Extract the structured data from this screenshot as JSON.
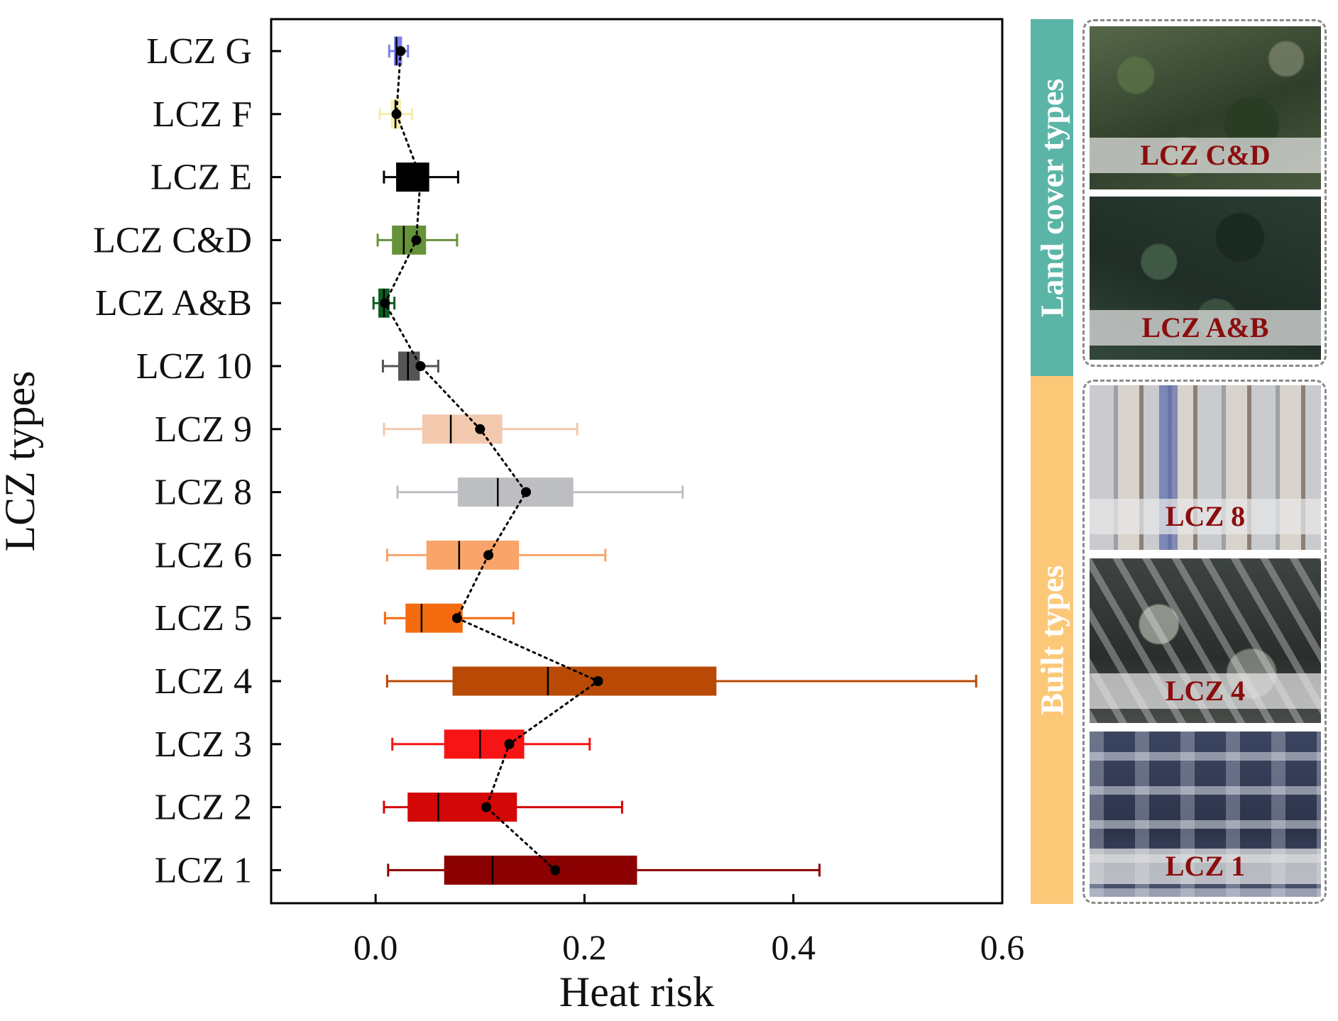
{
  "chart_data": {
    "type": "box",
    "title": "",
    "xlabel": "Heat risk",
    "ylabel": "LCZ types",
    "xlim": [
      -0.1,
      0.6
    ],
    "xticks": [
      0.0,
      0.2,
      0.4,
      0.6
    ],
    "xtick_labels": [
      "0.0",
      "0.2",
      "0.4",
      "0.6"
    ],
    "grid": false,
    "mean_line_style": "black dotted line connecting means",
    "categories": [
      "LCZ G",
      "LCZ F",
      "LCZ E",
      "LCZ C&D",
      "LCZ A&B",
      "LCZ 10",
      "LCZ 9",
      "LCZ 8",
      "LCZ 6",
      "LCZ 5",
      "LCZ 4",
      "LCZ 3",
      "LCZ 2",
      "LCZ 1"
    ],
    "series": [
      {
        "name": "LCZ G",
        "color": "#7b7df0",
        "whisker_low": 0.013,
        "q1": 0.018,
        "median": 0.02,
        "q3": 0.025,
        "whisker_high": 0.031,
        "mean": 0.024
      },
      {
        "name": "LCZ F",
        "color": "#f7eeaa",
        "whisker_low": 0.004,
        "q1": 0.015,
        "median": 0.019,
        "q3": 0.024,
        "whisker_high": 0.035,
        "mean": 0.02
      },
      {
        "name": "LCZ E",
        "color": "#000000",
        "whisker_low": 0.008,
        "q1": 0.02,
        "median": 0.033,
        "q3": 0.051,
        "whisker_high": 0.079,
        "mean": 0.043
      },
      {
        "name": "LCZ C&D",
        "color": "#66923a",
        "whisker_low": 0.002,
        "q1": 0.016,
        "median": 0.027,
        "q3": 0.048,
        "whisker_high": 0.078,
        "mean": 0.039
      },
      {
        "name": "LCZ A&B",
        "color": "#0b5d1e",
        "whisker_low": -0.002,
        "q1": 0.003,
        "median": 0.008,
        "q3": 0.013,
        "whisker_high": 0.018,
        "mean": 0.009
      },
      {
        "name": "LCZ 10",
        "color": "#555555",
        "whisker_low": 0.007,
        "q1": 0.022,
        "median": 0.031,
        "q3": 0.042,
        "whisker_high": 0.06,
        "mean": 0.043
      },
      {
        "name": "LCZ 9",
        "color": "#f2c9ad",
        "whisker_low": 0.008,
        "q1": 0.045,
        "median": 0.072,
        "q3": 0.121,
        "whisker_high": 0.193,
        "mean": 0.1
      },
      {
        "name": "LCZ 8",
        "color": "#bdbec2",
        "whisker_low": 0.021,
        "q1": 0.079,
        "median": 0.117,
        "q3": 0.189,
        "whisker_high": 0.294,
        "mean": 0.144
      },
      {
        "name": "LCZ 6",
        "color": "#f9a46a",
        "whisker_low": 0.011,
        "q1": 0.049,
        "median": 0.08,
        "q3": 0.137,
        "whisker_high": 0.22,
        "mean": 0.108
      },
      {
        "name": "LCZ 5",
        "color": "#f56b10",
        "whisker_low": 0.009,
        "q1": 0.029,
        "median": 0.044,
        "q3": 0.083,
        "whisker_high": 0.132,
        "mean": 0.078
      },
      {
        "name": "LCZ 4",
        "color": "#b84a06",
        "whisker_low": 0.011,
        "q1": 0.074,
        "median": 0.165,
        "q3": 0.326,
        "whisker_high": 0.575,
        "mean": 0.213
      },
      {
        "name": "LCZ 3",
        "color": "#f71414",
        "whisker_low": 0.016,
        "q1": 0.066,
        "median": 0.1,
        "q3": 0.142,
        "whisker_high": 0.205,
        "mean": 0.128
      },
      {
        "name": "LCZ 2",
        "color": "#d30707",
        "whisker_low": 0.008,
        "q1": 0.031,
        "median": 0.06,
        "q3": 0.135,
        "whisker_high": 0.236,
        "mean": 0.106
      },
      {
        "name": "LCZ 1",
        "color": "#8b0000",
        "whisker_low": 0.012,
        "q1": 0.066,
        "median": 0.112,
        "q3": 0.25,
        "whisker_high": 0.425,
        "mean": 0.172
      }
    ]
  },
  "side_panel": {
    "land_label": "Land cover types",
    "built_label": "Built types",
    "land_color": "#5ab5a7",
    "built_color": "#fbc878",
    "caption_color": "#8b0d0d",
    "land_tiles": [
      "LCZ C&D",
      "LCZ A&B"
    ],
    "built_tiles": [
      "LCZ 8",
      "LCZ 4",
      "LCZ 1"
    ]
  }
}
